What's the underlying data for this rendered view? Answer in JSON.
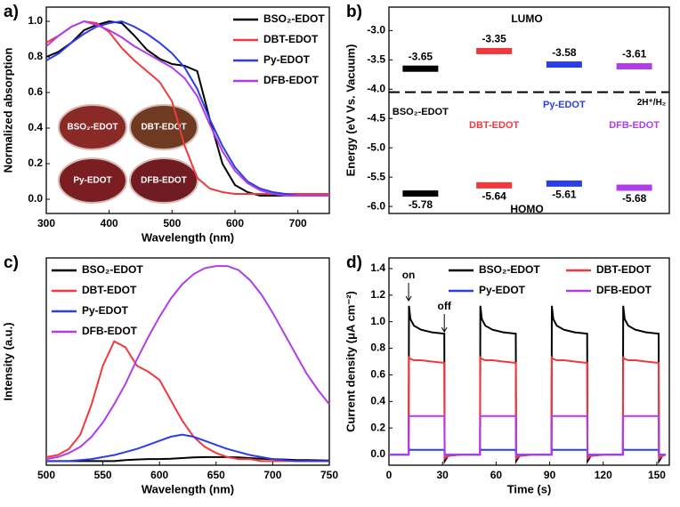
{
  "chart_data": [
    {
      "type": "line",
      "panel_label": "a)",
      "xlabel": "Wavelength (nm)",
      "ylabel": "Normalized absorption",
      "xlim": [
        300,
        750
      ],
      "xticks": [
        300,
        400,
        500,
        600,
        700
      ],
      "ylim": [
        -0.08,
        1.08
      ],
      "yticks": [
        {
          "value": 0,
          "label": "0.0"
        },
        0.2,
        0.4,
        0.6,
        0.8,
        {
          "value": 1,
          "label": "1.0"
        }
      ],
      "legend": "upper right",
      "x": [
        300,
        320,
        340,
        360,
        380,
        400,
        420,
        440,
        460,
        480,
        500,
        520,
        540,
        560,
        580,
        600,
        620,
        640,
        660,
        680,
        700,
        720,
        750
      ],
      "series": [
        {
          "name": "BSO₂-EDOT",
          "color": "#000000",
          "values": [
            0.8,
            0.83,
            0.88,
            0.95,
            0.98,
            1.0,
            0.99,
            0.92,
            0.84,
            0.79,
            0.76,
            0.75,
            0.72,
            0.45,
            0.2,
            0.08,
            0.04,
            0.02,
            0.02,
            0.02,
            0.02,
            0.02,
            0.02
          ]
        },
        {
          "name": "DBT-EDOT",
          "color": "#f0393c",
          "values": [
            0.88,
            0.92,
            0.97,
            1.0,
            0.99,
            0.94,
            0.85,
            0.78,
            0.72,
            0.66,
            0.55,
            0.3,
            0.12,
            0.06,
            0.04,
            0.03,
            0.03,
            0.03,
            0.03,
            0.03,
            0.03,
            0.03,
            0.03
          ]
        },
        {
          "name": "Py-EDOT",
          "color": "#2b3de8",
          "values": [
            0.78,
            0.82,
            0.88,
            0.93,
            0.97,
            0.99,
            1.0,
            0.97,
            0.93,
            0.88,
            0.82,
            0.74,
            0.62,
            0.45,
            0.3,
            0.18,
            0.1,
            0.06,
            0.04,
            0.03,
            0.02,
            0.02,
            0.02
          ]
        },
        {
          "name": "DFB-EDOT",
          "color": "#b03ee8",
          "values": [
            0.86,
            0.92,
            0.97,
            1.0,
            0.98,
            0.95,
            0.91,
            0.86,
            0.82,
            0.78,
            0.74,
            0.68,
            0.58,
            0.42,
            0.27,
            0.16,
            0.09,
            0.05,
            0.03,
            0.02,
            0.02,
            0.02,
            0.02
          ]
        }
      ],
      "photo_labels": [
        "BSO₂-EDOT",
        "DBT-EDOT",
        "Py-EDOT",
        "DFB-EDOT"
      ],
      "photo_colors": [
        "#8a2a26",
        "#6e3a22",
        "#7a1e22",
        "#701c22"
      ]
    },
    {
      "type": "energy_level",
      "panel_label": "b)",
      "ylabel": "Energy (eV Vs. Vacuum)",
      "ylim": [
        -6.12,
        -2.6
      ],
      "yticks": [
        {
          "value": -3,
          "label": "-3.0"
        },
        -3.5,
        {
          "value": -4,
          "label": "-4.0"
        },
        -4.5,
        {
          "value": -5,
          "label": "-5.0"
        },
        -5.5,
        {
          "value": -6,
          "label": "-6.0"
        }
      ],
      "categories": [
        "BSO₂-EDOT",
        "DBT-EDOT",
        "Py-EDOT",
        "DFB-EDOT"
      ],
      "colors": [
        "#000000",
        "#f0393c",
        "#2b3de8",
        "#b03ee8"
      ],
      "lumo": [
        -3.65,
        -3.35,
        -3.58,
        -3.61
      ],
      "homo": [
        -5.78,
        -5.64,
        -5.61,
        -5.68
      ],
      "reference_line": -4.05,
      "annotations": [
        "LUMO",
        "HOMO",
        "2H⁺/H₂"
      ]
    },
    {
      "type": "line",
      "panel_label": "c)",
      "xlabel": "Wavelength (nm)",
      "ylabel": "Intensity (a.u.)",
      "xlim": [
        500,
        750
      ],
      "xticks": [
        500,
        550,
        600,
        650,
        700,
        750
      ],
      "ylim": [
        -0.02,
        1.0
      ],
      "legend": "upper left",
      "x": [
        500,
        510,
        520,
        530,
        540,
        550,
        560,
        570,
        580,
        590,
        600,
        610,
        620,
        630,
        640,
        650,
        660,
        670,
        680,
        690,
        700,
        710,
        720,
        730,
        740,
        750
      ],
      "series": [
        {
          "name": "BSO₂-EDOT",
          "color": "#000000",
          "values": [
            0,
            0,
            0,
            0,
            0,
            0,
            0,
            0.005,
            0.008,
            0.01,
            0.01,
            0.012,
            0.015,
            0.018,
            0.02,
            0.02,
            0.02,
            0.018,
            0.015,
            0.012,
            0.01,
            0.008,
            0.006,
            0.005,
            0.004,
            0.003
          ]
        },
        {
          "name": "DBT-EDOT",
          "color": "#f0393c",
          "values": [
            0.02,
            0.03,
            0.06,
            0.13,
            0.28,
            0.47,
            0.59,
            0.56,
            0.47,
            0.44,
            0.4,
            0.3,
            0.2,
            0.12,
            0.07,
            0.04,
            0.02,
            0.01,
            0.01,
            0,
            0,
            0,
            0,
            0,
            0,
            0
          ]
        },
        {
          "name": "Py-EDOT",
          "color": "#2b3de8",
          "values": [
            0,
            0,
            0,
            0.005,
            0.01,
            0.02,
            0.03,
            0.045,
            0.06,
            0.08,
            0.1,
            0.12,
            0.13,
            0.12,
            0.1,
            0.08,
            0.06,
            0.045,
            0.03,
            0.02,
            0.01,
            0.005,
            0,
            0,
            0,
            0
          ]
        },
        {
          "name": "DFB-EDOT",
          "color": "#b03ee8",
          "values": [
            0.01,
            0.02,
            0.04,
            0.07,
            0.12,
            0.19,
            0.28,
            0.38,
            0.5,
            0.61,
            0.71,
            0.8,
            0.87,
            0.92,
            0.95,
            0.96,
            0.96,
            0.94,
            0.89,
            0.82,
            0.73,
            0.63,
            0.53,
            0.43,
            0.35,
            0.28
          ]
        }
      ]
    },
    {
      "type": "line",
      "panel_label": "d)",
      "xlabel": "Time (s)",
      "ylabel": "Current density (μA cm⁻²)",
      "xlim": [
        0,
        157
      ],
      "xticks": [
        0,
        30,
        60,
        90,
        120,
        150
      ],
      "ylim": [
        -0.08,
        1.48
      ],
      "yticks": [
        {
          "value": 0,
          "label": "0.0"
        },
        0.2,
        0.4,
        0.6,
        0.8,
        {
          "value": 1,
          "label": "1.0"
        },
        1.2,
        1.4
      ],
      "legend": "upper right",
      "legend_columns": 2,
      "annotations": [
        "on",
        "off"
      ],
      "x": [
        0,
        11,
        11.2,
        12,
        14,
        18,
        24,
        31,
        31.2,
        33,
        40,
        51,
        51.2,
        52,
        54,
        58,
        64,
        71,
        71.2,
        73,
        80,
        91,
        91.2,
        92,
        94,
        98,
        104,
        111,
        111.2,
        113,
        120,
        131,
        131.2,
        132,
        134,
        138,
        144,
        151,
        151.2,
        153,
        155
      ],
      "series": [
        {
          "name": "BSO₂-EDOT",
          "color": "#000000",
          "values": [
            0,
            0,
            1.12,
            1.02,
            0.97,
            0.94,
            0.92,
            0.91,
            -0.05,
            -0.01,
            0,
            0,
            1.12,
            1.02,
            0.97,
            0.94,
            0.92,
            0.91,
            -0.05,
            -0.01,
            0,
            0,
            1.12,
            1.02,
            0.97,
            0.94,
            0.92,
            0.91,
            -0.05,
            -0.01,
            0,
            0,
            1.12,
            1.02,
            0.97,
            0.94,
            0.92,
            0.91,
            -0.05,
            -0.01,
            0
          ]
        },
        {
          "name": "DBT-EDOT",
          "color": "#f0393c",
          "values": [
            0,
            0,
            0.73,
            0.72,
            0.71,
            0.71,
            0.7,
            0.69,
            -0.03,
            -0.01,
            0,
            0,
            0.73,
            0.72,
            0.71,
            0.71,
            0.7,
            0.69,
            -0.03,
            -0.01,
            0,
            0,
            0.73,
            0.72,
            0.71,
            0.71,
            0.7,
            0.69,
            -0.03,
            -0.01,
            0,
            0,
            0.73,
            0.72,
            0.71,
            0.71,
            0.7,
            0.69,
            -0.03,
            -0.01,
            0
          ]
        },
        {
          "name": "Py-EDOT",
          "color": "#2b3de8",
          "values": [
            0,
            0,
            0.04,
            0.035,
            0.035,
            0.035,
            0.035,
            0.035,
            0,
            0,
            0,
            0,
            0.04,
            0.035,
            0.035,
            0.035,
            0.035,
            0.035,
            0,
            0,
            0,
            0,
            0.04,
            0.035,
            0.035,
            0.035,
            0.035,
            0.035,
            0,
            0,
            0,
            0,
            0.04,
            0.035,
            0.035,
            0.035,
            0.035,
            0.035,
            0,
            0,
            0
          ]
        },
        {
          "name": "DFB-EDOT",
          "color": "#b03ee8",
          "values": [
            0,
            0,
            0.29,
            0.29,
            0.29,
            0.29,
            0.29,
            0.29,
            -0.01,
            0,
            0,
            0,
            0.29,
            0.29,
            0.29,
            0.29,
            0.29,
            0.29,
            -0.01,
            0,
            0,
            0,
            0.29,
            0.29,
            0.29,
            0.29,
            0.29,
            0.29,
            -0.01,
            0,
            0,
            0,
            0.29,
            0.29,
            0.29,
            0.29,
            0.29,
            0.29,
            -0.01,
            0,
            0
          ]
        }
      ]
    }
  ]
}
